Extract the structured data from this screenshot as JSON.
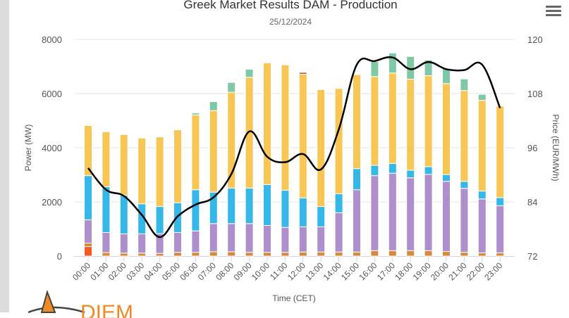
{
  "chart_data": {
    "type": "bar",
    "stacked": true,
    "title": "Greek Market Results DAM - Production",
    "subtitle": "25/12/2024",
    "xlabel": "Time (CET)",
    "ylabel": "Power (MW)",
    "y2label": "Price (EUR/MWh)",
    "ylim": [
      0,
      8000
    ],
    "y2lim": [
      72,
      120
    ],
    "yticks": [
      "0",
      "2000",
      "4000",
      "6000",
      "8000"
    ],
    "y2ticks": [
      "72",
      "84",
      "96",
      "108",
      "120"
    ],
    "grid": true,
    "legend": "none",
    "categories": [
      "00:00",
      "01:00",
      "02:00",
      "03:00",
      "04:00",
      "05:00",
      "06:00",
      "07:00",
      "08:00",
      "09:00",
      "10:00",
      "11:00",
      "12:00",
      "13:00",
      "14:00",
      "15:00",
      "16:00",
      "17:00",
      "18:00",
      "19:00",
      "20:00",
      "21:00",
      "22:00",
      "23:00"
    ],
    "series": [
      {
        "color": "#f25a1f",
        "values": [
          350,
          0,
          0,
          0,
          0,
          0,
          0,
          0,
          0,
          0,
          0,
          0,
          0,
          0,
          0,
          0,
          0,
          0,
          0,
          0,
          0,
          0,
          0,
          0
        ]
      },
      {
        "color": "#d9893a",
        "values": [
          130,
          130,
          110,
          110,
          100,
          140,
          140,
          160,
          160,
          140,
          140,
          140,
          150,
          150,
          150,
          150,
          200,
          200,
          200,
          200,
          170,
          140,
          120,
          120
        ]
      },
      {
        "color": "#ae8fcb",
        "values": [
          860,
          740,
          710,
          710,
          730,
          730,
          790,
          1040,
          1040,
          1060,
          990,
          920,
          930,
          930,
          1450,
          2300,
          2770,
          2860,
          2690,
          2820,
          2590,
          2360,
          1990,
          1740
        ]
      },
      {
        "color": "#35b8e8",
        "values": [
          1630,
          1690,
          1430,
          1110,
          1000,
          1100,
          1520,
          1160,
          1310,
          1310,
          1510,
          1370,
          1070,
          750,
          700,
          780,
          380,
          360,
          280,
          280,
          250,
          260,
          290,
          300
        ]
      },
      {
        "color": "#f8c655",
        "values": [
          1850,
          2030,
          2240,
          2430,
          2570,
          2690,
          2760,
          3010,
          3540,
          4090,
          4490,
          4630,
          4570,
          4320,
          3890,
          3470,
          3280,
          3340,
          3360,
          3360,
          3360,
          3350,
          3350,
          3380
        ]
      },
      {
        "color": "#b02a2a",
        "values": [
          0,
          0,
          0,
          0,
          0,
          0,
          0,
          0,
          0,
          0,
          0,
          0,
          60,
          0,
          0,
          0,
          0,
          0,
          0,
          0,
          0,
          0,
          0,
          0
        ]
      },
      {
        "color": "#7ec8a6",
        "values": [
          0,
          0,
          0,
          0,
          0,
          0,
          70,
          330,
          360,
          300,
          0,
          0,
          0,
          0,
          0,
          0,
          550,
          740,
          840,
          580,
          550,
          430,
          220,
          0
        ]
      }
    ],
    "price_line": {
      "color": "#000000",
      "axis": "right",
      "values": [
        91.5,
        86.7,
        85.3,
        81.1,
        76.2,
        80.8,
        83.4,
        85.0,
        90.2,
        99.6,
        94.0,
        92.8,
        94.6,
        91.2,
        100.1,
        114.4,
        115.2,
        116.0,
        113.4,
        115.0,
        113.4,
        113.2,
        114.4,
        104.8
      ]
    }
  },
  "menu_icon": "hamburger-icon",
  "logo": {
    "text": "DIEM",
    "color": "#f08a24"
  }
}
